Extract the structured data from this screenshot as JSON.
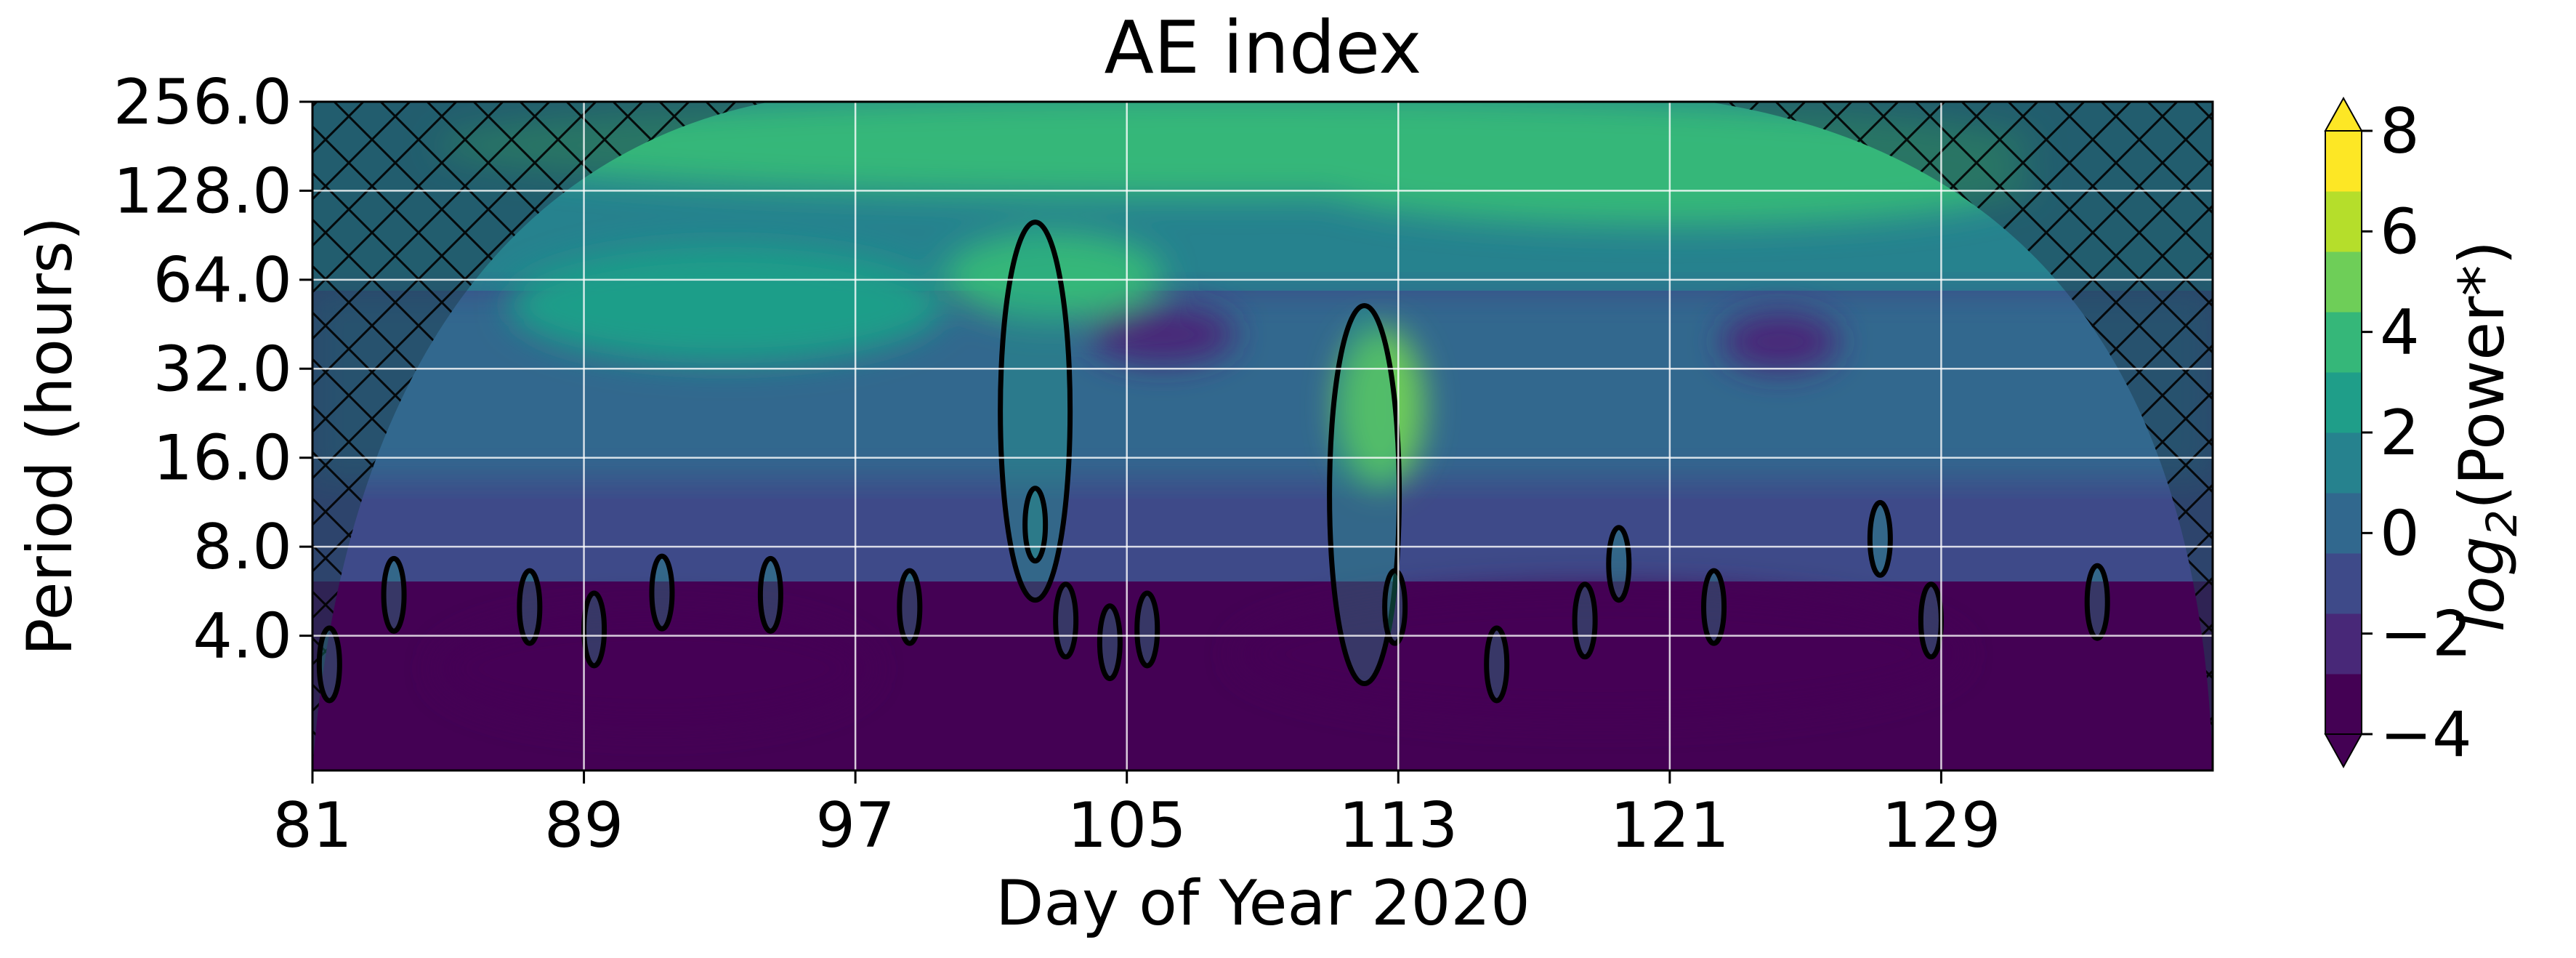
{
  "chart_data": {
    "type": "heatmap",
    "title": "AE index",
    "xlabel": "Day of Year 2020",
    "ylabel": "Period (hours)",
    "x_range": [
      81,
      137
    ],
    "y_scale": "log2",
    "y_range": [
      1.4,
      256
    ],
    "x_ticks": [
      81,
      89,
      97,
      105,
      113,
      121,
      129
    ],
    "y_ticks": [
      4.0,
      8.0,
      16.0,
      32.0,
      64.0,
      128.0,
      256.0
    ],
    "y_tick_labels": [
      "4.0",
      "8.0",
      "16.0",
      "32.0",
      "64.0",
      "128.0",
      "256.0"
    ],
    "grid": true,
    "colorbar": {
      "label_log": "log",
      "label_base": "2",
      "label_rest": "(Power*)",
      "ticks": [
        -4,
        -2,
        0,
        2,
        4,
        6,
        8
      ],
      "tick_labels": [
        "−4",
        "−2",
        "0",
        "2",
        "4",
        "6",
        "8"
      ],
      "range": [
        -4,
        8
      ],
      "extend": "both",
      "colors": [
        "#440154",
        "#482878",
        "#3e4a89",
        "#31688e",
        "#26828e",
        "#1f9e89",
        "#35b779",
        "#6ece58",
        "#b5de2b",
        "#fde725"
      ]
    },
    "cone_of_influence": "hatched",
    "significance_contours": [
      {
        "day": 81.5,
        "period": 3.2
      },
      {
        "day": 83.4,
        "period": 5.5
      },
      {
        "day": 87.4,
        "period": 5.0
      },
      {
        "day": 89.3,
        "period": 4.2
      },
      {
        "day": 91.3,
        "period": 5.6
      },
      {
        "day": 94.5,
        "period": 5.5
      },
      {
        "day": 98.6,
        "period": 5.0
      },
      {
        "day": 102.3,
        "period": 23.0
      },
      {
        "day": 102.3,
        "period": 9.5
      },
      {
        "day": 103.2,
        "period": 4.5
      },
      {
        "day": 104.5,
        "period": 3.8
      },
      {
        "day": 105.6,
        "period": 4.2
      },
      {
        "day": 112.0,
        "period": 12.0
      },
      {
        "day": 112.9,
        "period": 5.0
      },
      {
        "day": 115.9,
        "period": 3.2
      },
      {
        "day": 118.5,
        "period": 4.5
      },
      {
        "day": 119.5,
        "period": 7.0
      },
      {
        "day": 122.3,
        "period": 5.0
      },
      {
        "day": 127.2,
        "period": 8.5
      },
      {
        "day": 128.7,
        "period": 4.5
      },
      {
        "day": 133.6,
        "period": 5.2
      }
    ]
  }
}
